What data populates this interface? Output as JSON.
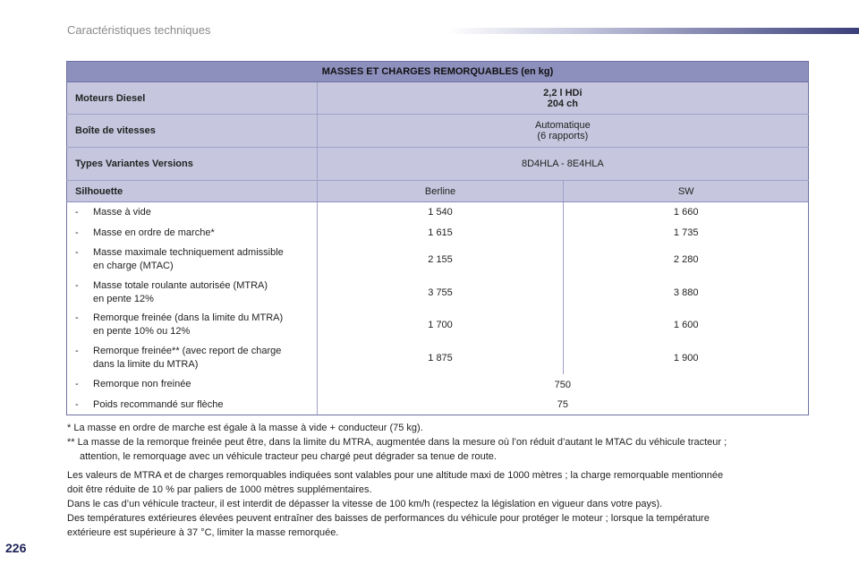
{
  "header": {
    "section_title": "Caractéristiques techniques"
  },
  "table": {
    "title": "MASSES ET CHARGES REMORQUABLES (en kg)",
    "moteurs": {
      "label": "Moteurs Diesel",
      "value_line1": "2,2 l HDi",
      "value_line2": "204 ch"
    },
    "boite": {
      "label": "Boîte de vitesses",
      "value_line1": "Automatique",
      "value_line2": "(6 rapports)"
    },
    "types": {
      "label": "Types Variantes Versions",
      "value": "8D4HLA - 8E4HLA"
    },
    "silhouette": {
      "label": "Silhouette",
      "col1": "Berline",
      "col2": "SW"
    },
    "rows": [
      {
        "dash": "-",
        "label_line1": "Masse à vide",
        "label_line2": "",
        "berline": "1 540",
        "sw": "1 660"
      },
      {
        "dash": "-",
        "label_line1": "Masse en ordre de marche*",
        "label_line2": "",
        "berline": "1 615",
        "sw": "1 735"
      },
      {
        "dash": "-",
        "label_line1": "Masse maximale techniquement admissible",
        "label_line2": "en charge (MTAC)",
        "berline": "2 155",
        "sw": "2 280"
      },
      {
        "dash": "-",
        "label_line1": "Masse totale roulante autorisée (MTRA)",
        "label_line2": "en pente 12%",
        "berline": "3 755",
        "sw": "3 880"
      },
      {
        "dash": "-",
        "label_line1": "Remorque freinée (dans la limite du MTRA)",
        "label_line2": "en pente 10% ou 12%",
        "berline": "1 700",
        "sw": "1 600"
      },
      {
        "dash": "-",
        "label_line1": "Remorque freinée** (avec report de charge",
        "label_line2": "dans la limite du MTRA)",
        "berline": "1 875",
        "sw": "1 900"
      }
    ],
    "merged_rows": [
      {
        "dash": "-",
        "label": "Remorque non freinée",
        "value": "750"
      },
      {
        "dash": "-",
        "label": "Poids recommandé sur flèche",
        "value": "75"
      }
    ]
  },
  "footnotes": {
    "f1": "* La masse en ordre de marche est égale à la masse à vide + conducteur (75 kg).",
    "f2_line1": "** La masse de la remorque freinée peut être, dans la limite du MTRA, augmentée dans la mesure où l’on réduit d’autant le MTAC du véhicule tracteur ;",
    "f2_line2": "attention, le remorquage avec un véhicule tracteur peu chargé peut dégrader sa tenue de route."
  },
  "paragraph": {
    "line1": "Les valeurs de MTRA et de charges remorquables indiquées sont valables pour une altitude maxi de 1000 mètres ; la charge remorquable mentionnée",
    "line2": "doit être réduite de 10 % par paliers de 1000 mètres supplémentaires.",
    "line3": "Dans le cas d’un véhicule tracteur, il est interdit de dépasser la vitesse de 100 km/h (respectez la législation en vigueur dans votre pays).",
    "line4": "Des températures extérieures élevées peuvent entraîner des baisses de performances du véhicule pour protéger le moteur ; lorsque la température",
    "line5": "extérieure est supérieure à 37 °C, limiter la masse remorquée."
  },
  "page_number": "226"
}
